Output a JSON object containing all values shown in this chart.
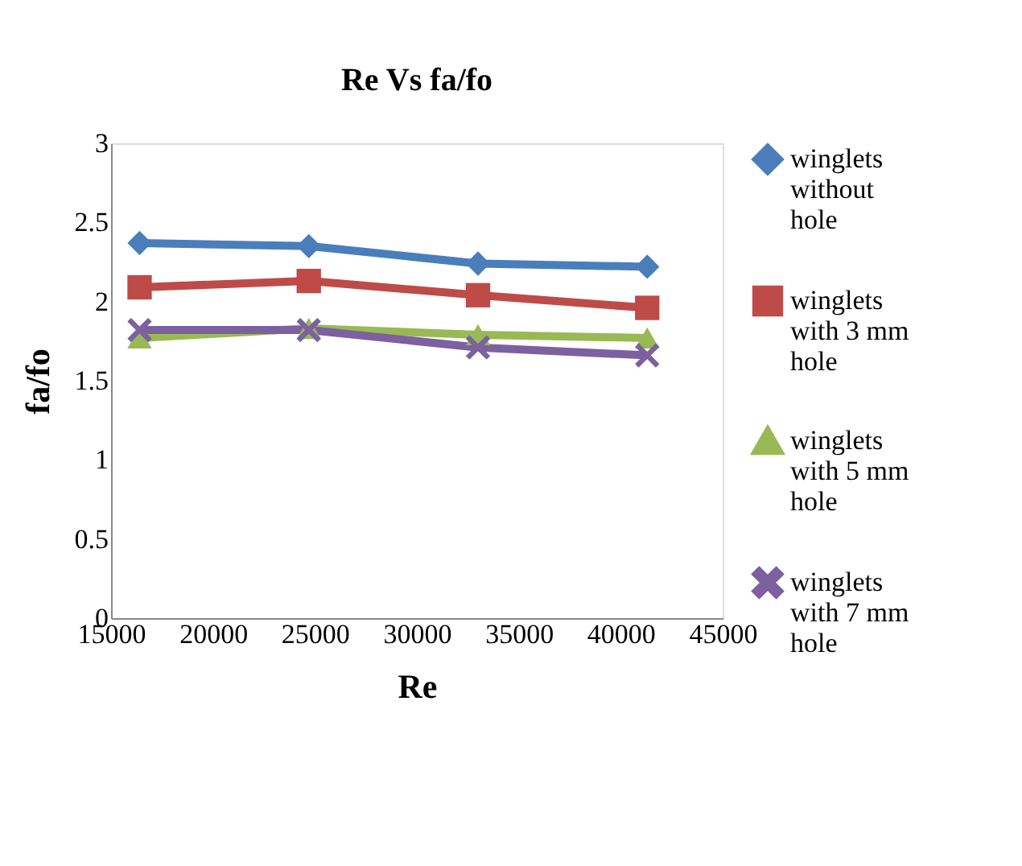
{
  "chart_data": {
    "type": "line",
    "title": "Re Vs fa/fo",
    "xlabel": "Re",
    "ylabel": "fa/fo",
    "x": [
      16400,
      24700,
      33000,
      41300
    ],
    "xlim": [
      15000,
      45000
    ],
    "xticks": [
      15000,
      20000,
      25000,
      30000,
      35000,
      40000,
      45000
    ],
    "ylim": [
      0,
      3
    ],
    "yticks": [
      0,
      0.5,
      1,
      1.5,
      2,
      2.5,
      3
    ],
    "grid": false,
    "legend": "right",
    "line_style": "solid",
    "series": [
      {
        "name": "winglets without hole",
        "color": "#4a7ebb",
        "marker": "diamond",
        "values": [
          2.37,
          2.35,
          2.24,
          2.22
        ]
      },
      {
        "name": "winglets with 3 mm hole",
        "color": "#be4b48",
        "marker": "square",
        "values": [
          2.09,
          2.13,
          2.04,
          1.96
        ]
      },
      {
        "name": "winglets with 5 mm hole",
        "color": "#98b954",
        "marker": "triangle",
        "values": [
          1.77,
          1.83,
          1.79,
          1.77
        ]
      },
      {
        "name": "winglets with 7 mm hole",
        "color": "#7d60a0",
        "marker": "cross",
        "values": [
          1.82,
          1.82,
          1.71,
          1.66
        ]
      }
    ]
  }
}
